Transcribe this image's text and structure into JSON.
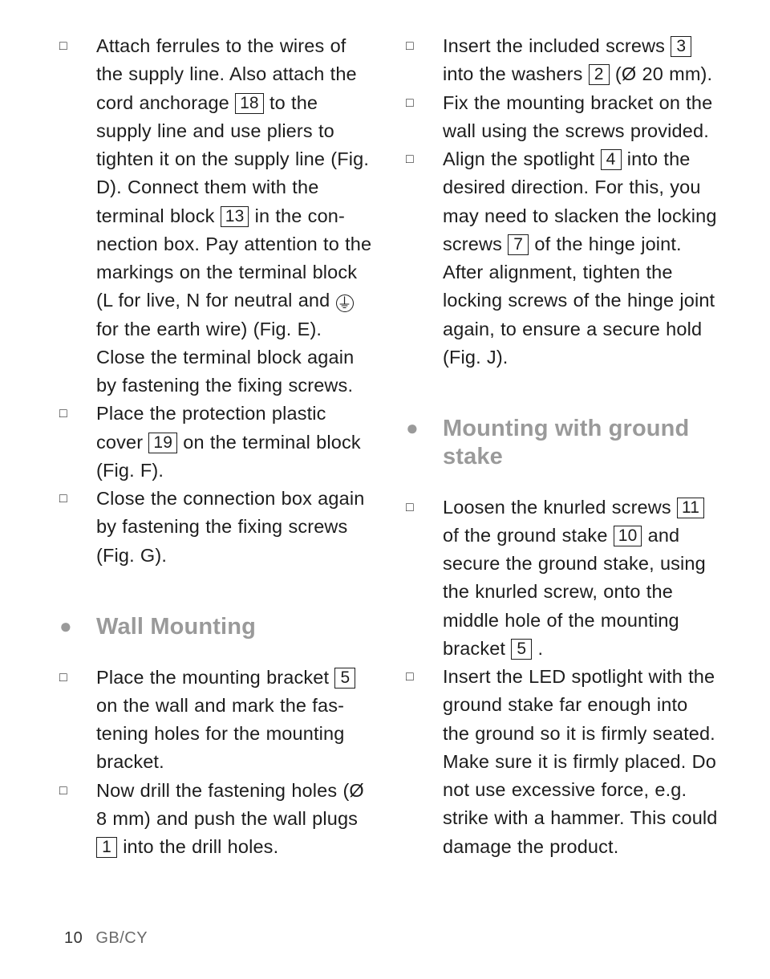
{
  "markers": {
    "box": "□",
    "bullet": "●"
  },
  "refs": {
    "r18": "18",
    "r13": "13",
    "r19": "19",
    "r5a": "5",
    "r1": "1",
    "r3": "3",
    "r2": "2",
    "r4": "4",
    "r7": "7",
    "r11": "11",
    "r10": "10",
    "r5b": "5"
  },
  "symbols": {
    "earth": "⏚",
    "diameter": "Ø"
  },
  "left": {
    "item1": {
      "a": "Attach ferrules to the wires of the supply line. Also attach the cord anchorage ",
      "b": " to the supply line and use pliers to tighten it on the supply line (Fig. D). Connect them with the terminal block ",
      "c": " in the con­nection box. Pay attention to the markings on the terminal block (L for live, N for neutral and ",
      "d": " for the earth wire) (Fig. E). Close the terminal block again by fastening the fixing screws."
    },
    "item2": {
      "a": "Place the protection plastic cover ",
      "b": " on the terminal block (Fig. F)."
    },
    "item3": "Close the connection box again by fastening the fixing screws (Fig. G).",
    "heading": "Wall Mounting",
    "item4": {
      "a": "Place the mounting bracket ",
      "b": " on the wall and mark the fas­tening holes for the mounting bracket."
    },
    "item5": {
      "a": "Now drill the fastening holes (",
      "b": " 8 mm) and push the wall plugs ",
      "c": " into the drill holes."
    }
  },
  "right": {
    "item1": {
      "a": "Insert the included screws ",
      "b": " into the washers ",
      "c": " (",
      "d": " 20 mm)."
    },
    "item2": "Fix the mounting bracket on the wall using the screws provided.",
    "item3": {
      "a": "Align the spotlight ",
      "b": " into the desired direction. For this, you may need to slacken the lock­ing screws ",
      "c": " of the hinge joint. After alignment, tighten the locking screws of the hinge joint again, to ensure a secure hold (Fig. J)."
    },
    "heading": "Mounting with ground stake",
    "item4": {
      "a": "Loosen the knurled screws ",
      "b": " of the ground stake ",
      "c": " and secure the ground stake, using the knurled screw, onto the middle hole of the mounting bracket ",
      "d": "."
    },
    "item5": "Insert the LED spotlight with the ground stake far enough into the ground so it is firmly seated. Make sure it is firmly placed. Do not use excessive force, e.g. strike with a hammer. This could damage the product."
  },
  "footer": {
    "page": "10",
    "label": "GB/CY"
  }
}
